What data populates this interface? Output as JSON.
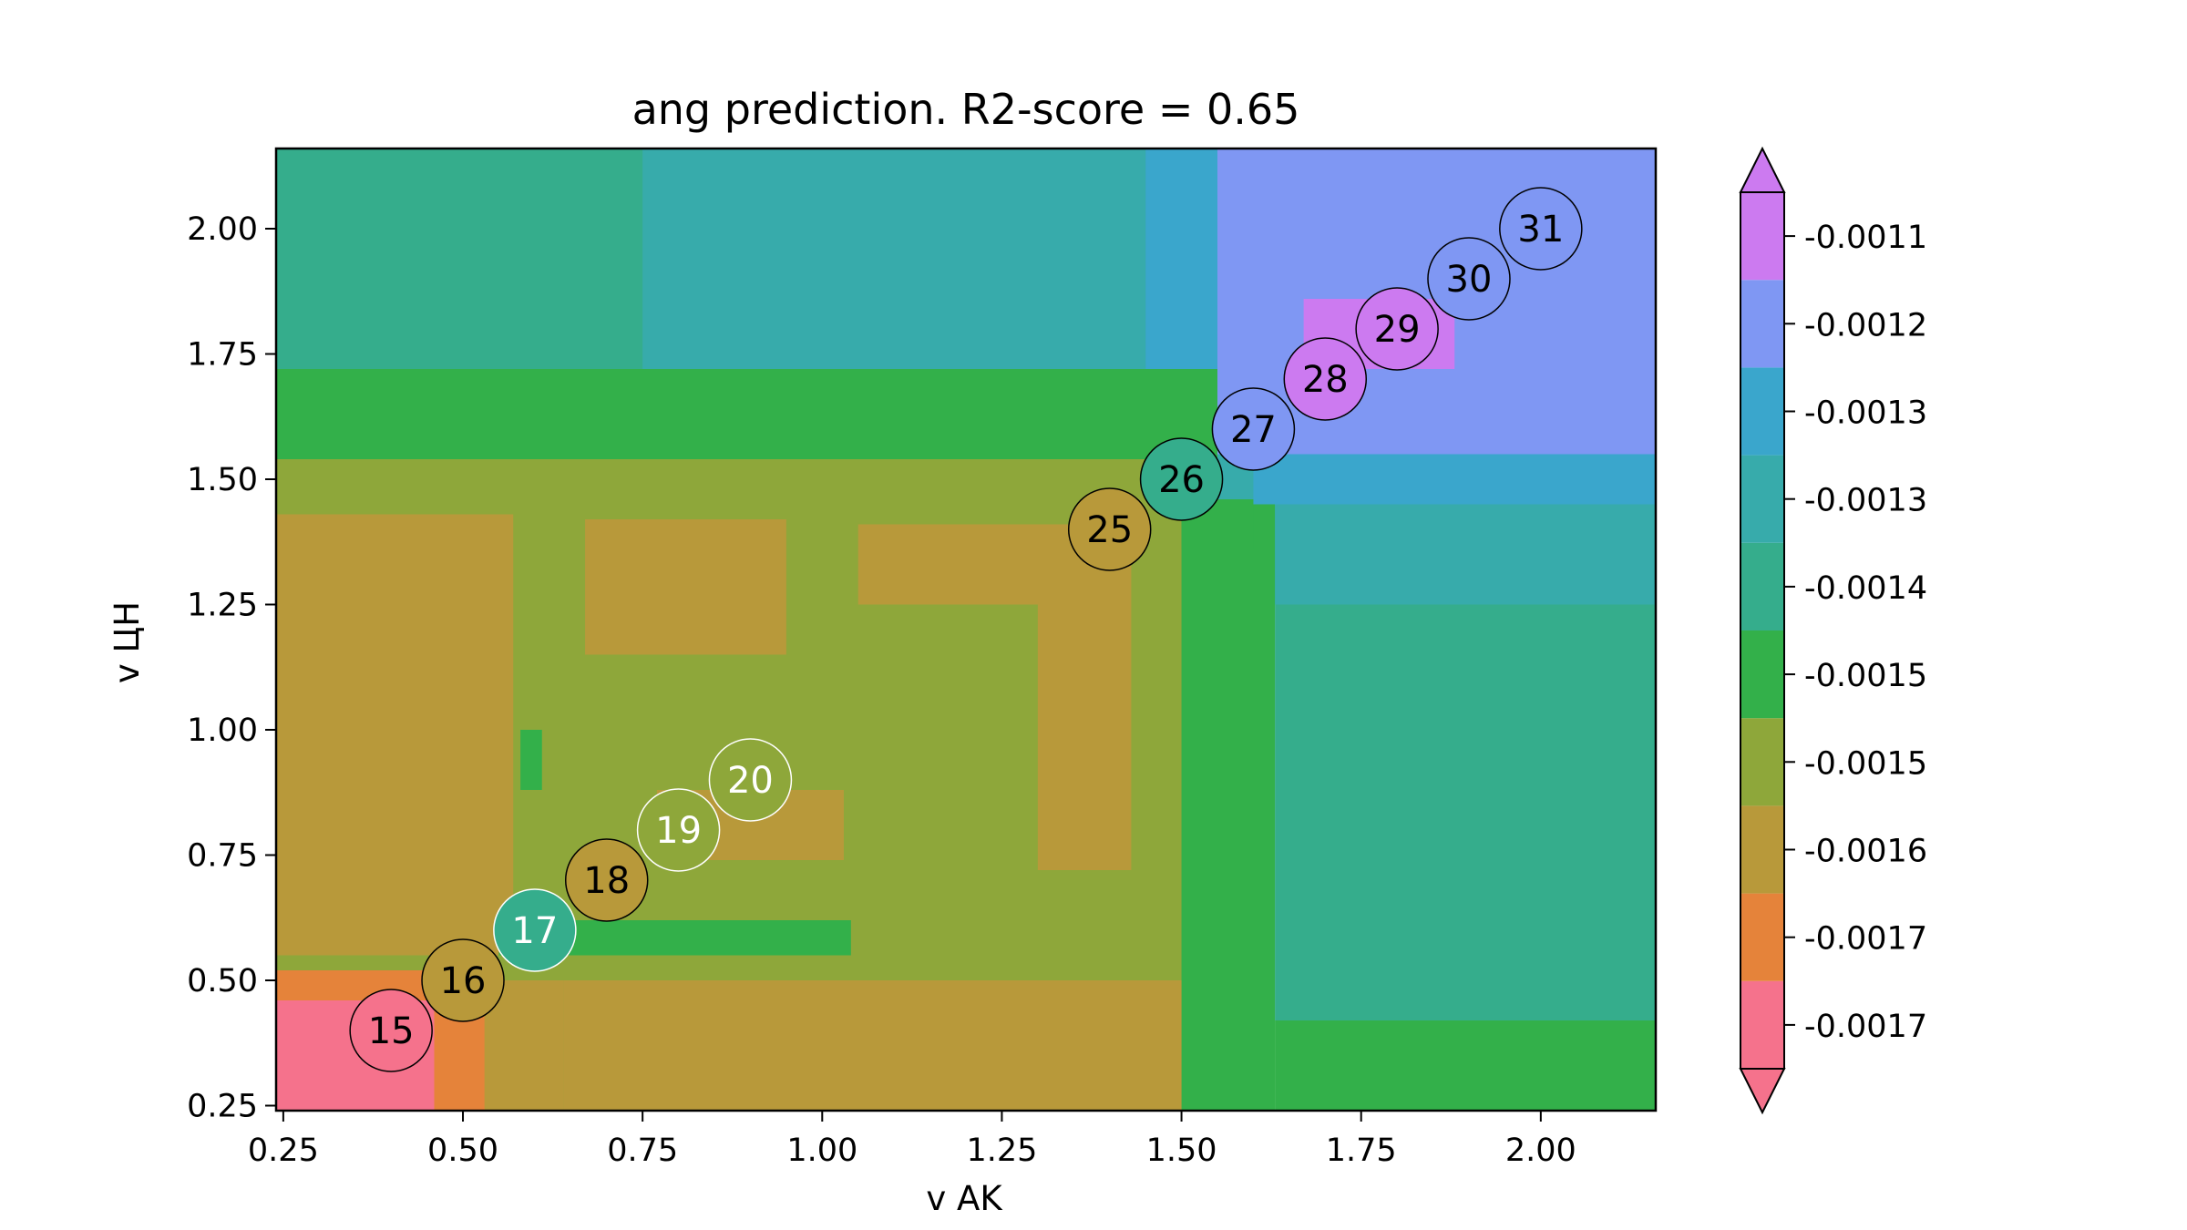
{
  "chart_data": {
    "type": "filled-contour",
    "title": "ang prediction. R2-score = 0.65",
    "xlabel": "v AK",
    "ylabel": "v ЦН",
    "xlim": [
      0.24,
      2.16
    ],
    "ylim": [
      0.24,
      2.16
    ],
    "xticks": [
      0.25,
      0.5,
      0.75,
      1.0,
      1.25,
      1.5,
      1.75,
      2.0
    ],
    "xtick_labels": [
      "0.25",
      "0.50",
      "0.75",
      "1.00",
      "1.25",
      "1.50",
      "1.75",
      "2.00"
    ],
    "yticks": [
      0.25,
      0.5,
      0.75,
      1.0,
      1.25,
      1.5,
      1.75,
      2.0
    ],
    "ytick_labels": [
      "0.25",
      "0.50",
      "0.75",
      "1.00",
      "1.25",
      "1.50",
      "1.75",
      "2.00"
    ],
    "colorbar": {
      "extend": "both",
      "levels": [
        {
          "label": "-0.0017",
          "color": "#f5728c"
        },
        {
          "label": "-0.0017",
          "color": "#e5833a"
        },
        {
          "label": "-0.0016",
          "color": "#b8993a"
        },
        {
          "label": "-0.0015",
          "color": "#8ea73a"
        },
        {
          "label": "-0.0015",
          "color": "#33b04a"
        },
        {
          "label": "-0.0014",
          "color": "#35ad8c"
        },
        {
          "label": "-0.0013",
          "color": "#37abab"
        },
        {
          "label": "-0.0013",
          "color": "#3aa6cc"
        },
        {
          "label": "-0.0012",
          "color": "#7f97f3"
        },
        {
          "label": "-0.0011",
          "color": "#cc7af0"
        }
      ]
    },
    "regions": [
      {
        "level": 5,
        "x": [
          0.24,
          2.16
        ],
        "y": [
          1.72,
          2.16
        ]
      },
      {
        "level": 6,
        "x": [
          0.75,
          1.45
        ],
        "y": [
          1.55,
          2.16
        ]
      },
      {
        "level": 7,
        "x": [
          1.45,
          1.55
        ],
        "y": [
          1.45,
          2.16
        ]
      },
      {
        "level": 8,
        "x": [
          1.55,
          2.16
        ],
        "y": [
          1.55,
          2.16
        ]
      },
      {
        "level": 6,
        "x": [
          1.55,
          2.16
        ],
        "y": [
          1.25,
          1.55
        ]
      },
      {
        "level": 7,
        "x": [
          1.6,
          2.16
        ],
        "y": [
          1.45,
          1.55
        ]
      },
      {
        "level": 9,
        "x": [
          1.67,
          1.88
        ],
        "y": [
          1.72,
          1.86
        ]
      },
      {
        "level": 5,
        "x": [
          1.63,
          2.16
        ],
        "y": [
          0.42,
          1.25
        ]
      },
      {
        "level": 4,
        "x": [
          0.24,
          1.55
        ],
        "y": [
          1.54,
          1.72
        ]
      },
      {
        "level": 3,
        "x": [
          0.24,
          1.55
        ],
        "y": [
          0.24,
          1.54
        ]
      },
      {
        "level": 4,
        "x": [
          1.5,
          1.63
        ],
        "y": [
          0.24,
          1.45
        ]
      },
      {
        "level": 4,
        "x": [
          1.63,
          2.16
        ],
        "y": [
          0.24,
          0.42
        ]
      },
      {
        "level": 2,
        "x": [
          0.24,
          0.57
        ],
        "y": [
          0.55,
          1.43
        ]
      },
      {
        "level": 2,
        "x": [
          0.64,
          1.5
        ],
        "y": [
          0.24,
          0.5
        ]
      },
      {
        "level": 2,
        "x": [
          0.77,
          1.03
        ],
        "y": [
          0.74,
          0.88
        ]
      },
      {
        "level": 2,
        "x": [
          1.05,
          1.42
        ],
        "y": [
          1.25,
          1.41
        ]
      },
      {
        "level": 2,
        "x": [
          1.3,
          1.43
        ],
        "y": [
          0.72,
          1.41
        ]
      },
      {
        "level": 2,
        "x": [
          0.67,
          0.95
        ],
        "y": [
          1.15,
          1.42
        ]
      },
      {
        "level": 2,
        "x": [
          0.34,
          0.64
        ],
        "y": [
          0.24,
          0.5
        ]
      },
      {
        "level": 1,
        "x": [
          0.24,
          0.46
        ],
        "y": [
          0.46,
          0.52
        ]
      },
      {
        "level": 1,
        "x": [
          0.46,
          0.53
        ],
        "y": [
          0.24,
          0.52
        ]
      },
      {
        "level": 0,
        "x": [
          0.24,
          0.46
        ],
        "y": [
          0.24,
          0.46
        ]
      },
      {
        "level": 4,
        "x": [
          0.55,
          1.04
        ],
        "y": [
          0.55,
          0.62
        ]
      },
      {
        "level": 4,
        "x": [
          0.58,
          0.61
        ],
        "y": [
          0.88,
          1.0
        ]
      },
      {
        "level": 4,
        "x": [
          1.5,
          1.6
        ],
        "y": [
          1.36,
          1.46
        ]
      }
    ],
    "points": [
      {
        "label": "15",
        "x": 0.4,
        "y": 0.4,
        "level": 0,
        "text_color": "#000000"
      },
      {
        "label": "16",
        "x": 0.5,
        "y": 0.5,
        "level": 2,
        "text_color": "#000000"
      },
      {
        "label": "17",
        "x": 0.6,
        "y": 0.6,
        "level": 5,
        "text_color": "#ffffff"
      },
      {
        "label": "18",
        "x": 0.7,
        "y": 0.7,
        "level": 2,
        "text_color": "#000000"
      },
      {
        "label": "19",
        "x": 0.8,
        "y": 0.8,
        "level": 3,
        "text_color": "#ffffff"
      },
      {
        "label": "20",
        "x": 0.9,
        "y": 0.9,
        "level": 3,
        "text_color": "#ffffff"
      },
      {
        "label": "25",
        "x": 1.4,
        "y": 1.4,
        "level": 2,
        "text_color": "#000000"
      },
      {
        "label": "26",
        "x": 1.5,
        "y": 1.5,
        "level": 5,
        "text_color": "#000000"
      },
      {
        "label": "27",
        "x": 1.6,
        "y": 1.6,
        "level": 8,
        "text_color": "#000000"
      },
      {
        "label": "28",
        "x": 1.7,
        "y": 1.7,
        "level": 9,
        "text_color": "#000000"
      },
      {
        "label": "29",
        "x": 1.8,
        "y": 1.8,
        "level": 9,
        "text_color": "#000000"
      },
      {
        "label": "30",
        "x": 1.9,
        "y": 1.9,
        "level": 8,
        "text_color": "#000000"
      },
      {
        "label": "31",
        "x": 2.0,
        "y": 2.0,
        "level": 8,
        "text_color": "#000000"
      }
    ]
  }
}
